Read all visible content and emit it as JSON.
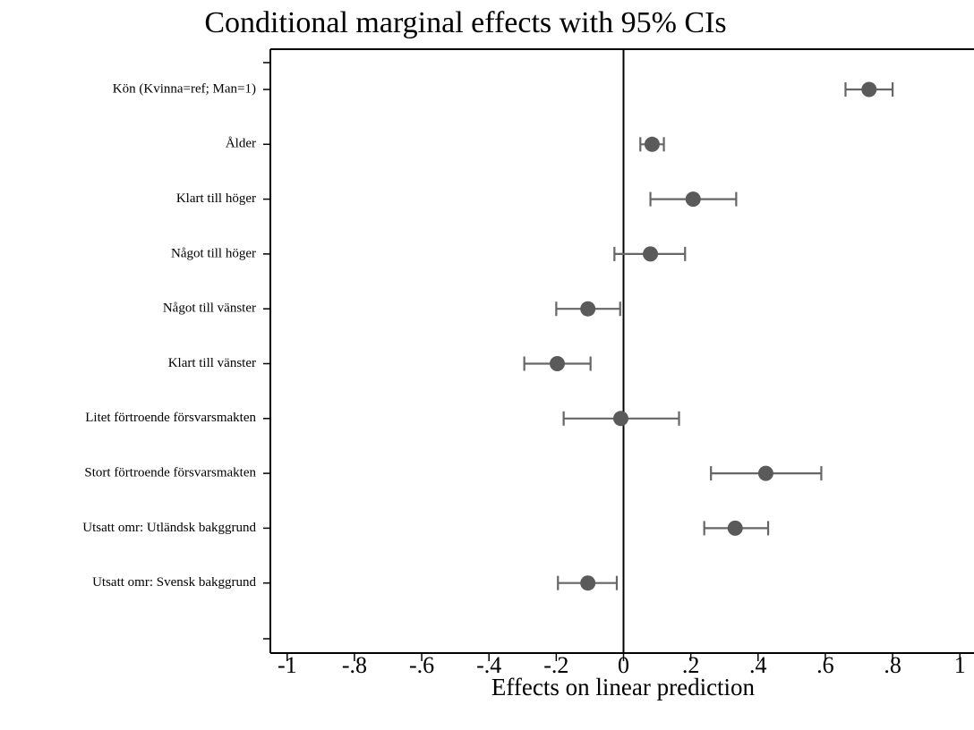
{
  "chart_data": {
    "type": "coefplot",
    "title": "Conditional marginal effects with 95% CIs",
    "xlabel": "Effects on linear prediction",
    "categories": [
      "Kön (Kvinna=ref; Man=1)",
      "Ålder",
      "Klart till höger",
      "Något till höger",
      "Något till vänster",
      "Klart till vänster",
      "Litet förtroende försvarsmakten",
      "Stort förtroende försvarsmakten",
      "Utsatt omr: Utländsk bakggrund",
      "Utsatt omr: Svensk bakggrund"
    ],
    "series": [
      {
        "color": "#5a5a5a",
        "values": [
          0.73,
          0.085,
          0.207,
          0.08,
          -0.106,
          -0.197,
          -0.008,
          0.423,
          0.332,
          -0.106
        ],
        "lower": [
          0.66,
          0.05,
          0.08,
          -0.027,
          -0.2,
          -0.295,
          -0.178,
          0.26,
          0.24,
          -0.195
        ],
        "upper": [
          0.8,
          0.12,
          0.335,
          0.183,
          -0.01,
          -0.098,
          0.165,
          0.588,
          0.43,
          -0.02
        ]
      }
    ],
    "xlim": [
      -1.05,
      1.05
    ],
    "xticks": [
      -1,
      {
        "value": -0.8,
        "label": "-.8"
      },
      {
        "value": -0.6,
        "label": "-.6"
      },
      {
        "value": -0.4,
        "label": "-.4"
      },
      {
        "value": -0.2,
        "label": "-.2"
      },
      0,
      {
        "value": 0.2,
        "label": ".2"
      },
      {
        "value": 0.4,
        "label": ".4"
      },
      {
        "value": 0.6,
        "label": ".6"
      },
      {
        "value": 0.8,
        "label": ".8"
      },
      1
    ],
    "xline": 0
  }
}
